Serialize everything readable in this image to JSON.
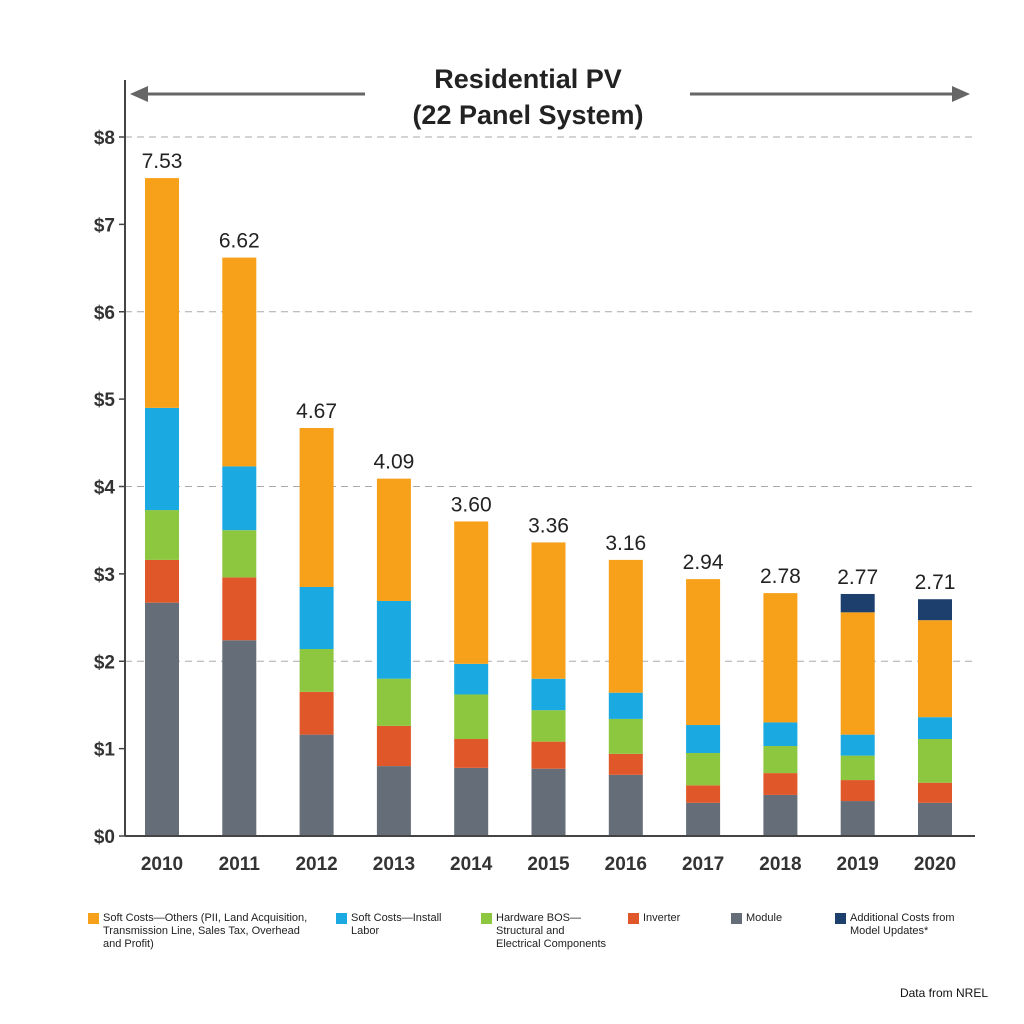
{
  "chart_data": {
    "type": "bar",
    "stacked": true,
    "title": "Residential PV",
    "subtitle": "(22 Panel System)",
    "xlabel": "",
    "ylabel": "",
    "ylim": [
      0,
      8
    ],
    "yticks": [
      "$0",
      "$1",
      "$2",
      "$3",
      "$4",
      "$5",
      "$6",
      "$7",
      "$8"
    ],
    "grid": "dashed horizontal at $2, $4, $6, $8",
    "legend_position": "bottom",
    "categories": [
      "2010",
      "2011",
      "2012",
      "2013",
      "2014",
      "2015",
      "2016",
      "2017",
      "2018",
      "2019",
      "2020"
    ],
    "totals": [
      "7.53",
      "6.62",
      "4.67",
      "4.09",
      "3.60",
      "3.36",
      "3.16",
      "2.94",
      "2.78",
      "2.77",
      "2.71"
    ],
    "series": [
      {
        "name": "Module",
        "color": "#656d78",
        "values": [
          2.67,
          2.24,
          1.16,
          0.8,
          0.78,
          0.77,
          0.7,
          0.38,
          0.47,
          0.4,
          0.38
        ]
      },
      {
        "name": "Inverter",
        "color": "#e0572a",
        "values": [
          0.49,
          0.72,
          0.49,
          0.46,
          0.33,
          0.31,
          0.24,
          0.2,
          0.25,
          0.24,
          0.23
        ]
      },
      {
        "name": "Hardware BOS—Structural and Electrical Components",
        "color": "#8dc63f",
        "values": [
          0.57,
          0.54,
          0.49,
          0.54,
          0.51,
          0.36,
          0.4,
          0.37,
          0.31,
          0.28,
          0.5
        ]
      },
      {
        "name": "Soft Costs—Install Labor",
        "color": "#1ba9e1",
        "values": [
          1.17,
          0.73,
          0.71,
          0.89,
          0.35,
          0.36,
          0.3,
          0.32,
          0.27,
          0.24,
          0.25
        ]
      },
      {
        "name": "Soft Costs—Others (PII, Land Acquisition, Transmission Line, Sales Tax, Overhead and Profit)",
        "color": "#f7a11a",
        "values": [
          2.63,
          2.39,
          1.82,
          1.4,
          1.63,
          1.56,
          1.52,
          1.67,
          1.48,
          1.4,
          1.11
        ]
      },
      {
        "name": "Additional Costs from Model Updates*",
        "color": "#1c3f6e",
        "values": [
          0,
          0,
          0,
          0,
          0,
          0,
          0,
          0,
          0,
          0.21,
          0.24
        ]
      }
    ],
    "legend_order": [
      4,
      3,
      2,
      1,
      0,
      5
    ]
  },
  "source": "Data from NREL"
}
